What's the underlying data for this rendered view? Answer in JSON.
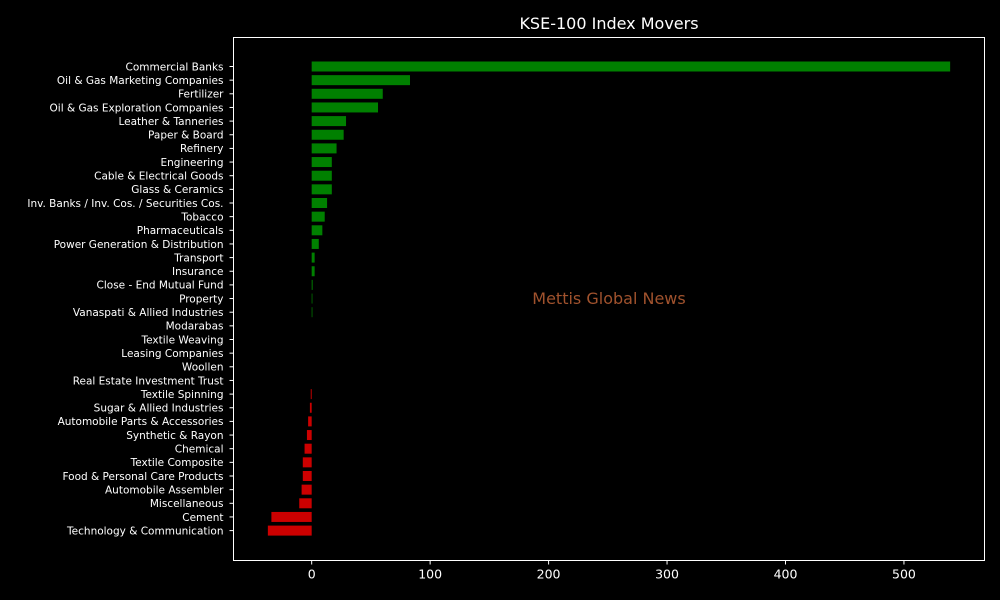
{
  "chart_data": {
    "type": "bar",
    "orientation": "horizontal",
    "title": "KSE-100 Index Movers",
    "xlabel": "",
    "ylabel": "",
    "xlim": [
      -66,
      568
    ],
    "xticks": [
      0,
      100,
      200,
      300,
      400,
      500
    ],
    "grid": false,
    "categories": [
      "Commercial Banks",
      "Oil & Gas Marketing Companies",
      "Fertilizer",
      "Oil & Gas Exploration Companies",
      "Leather & Tanneries",
      "Paper & Board",
      "Refinery",
      "Engineering",
      "Cable & Electrical Goods",
      "Glass & Ceramics",
      "Inv. Banks / Inv. Cos. / Securities Cos.",
      "Tobacco",
      "Pharmaceuticals",
      "Power Generation & Distribution",
      "Transport",
      "Insurance",
      "Close - End Mutual Fund",
      "Property",
      "Vanaspati & Allied Industries",
      "Modarabas",
      "Textile Weaving",
      "Leasing Companies",
      "Woollen",
      "Real Estate Investment Trust",
      "Textile Spinning",
      "Sugar & Allied Industries",
      "Automobile Parts & Accessories",
      "Synthetic & Rayon",
      "Chemical",
      "Textile Composite",
      "Food & Personal Care Products",
      "Automobile Assembler",
      "Miscellaneous",
      "Cement",
      "Technology & Communication"
    ],
    "values": [
      539,
      83,
      60,
      56,
      29,
      27,
      21,
      17,
      17,
      17,
      13,
      11,
      9,
      6,
      2.5,
      2.5,
      0.8,
      0.6,
      0.6,
      0,
      0,
      0,
      0,
      0,
      -0.8,
      -1.5,
      -3,
      -4,
      -6,
      -7.5,
      -7.5,
      -8.5,
      -10.5,
      -34,
      -37
    ],
    "colors": {
      "positive": "#008000",
      "negative": "#cc0000"
    },
    "watermark": {
      "text": "Mettis Global News",
      "color": "#a0522d"
    }
  },
  "theme": {
    "background": "#000000",
    "axes_face": "#000000",
    "axes_edge": "#ffffff",
    "text": "#ffffff"
  }
}
